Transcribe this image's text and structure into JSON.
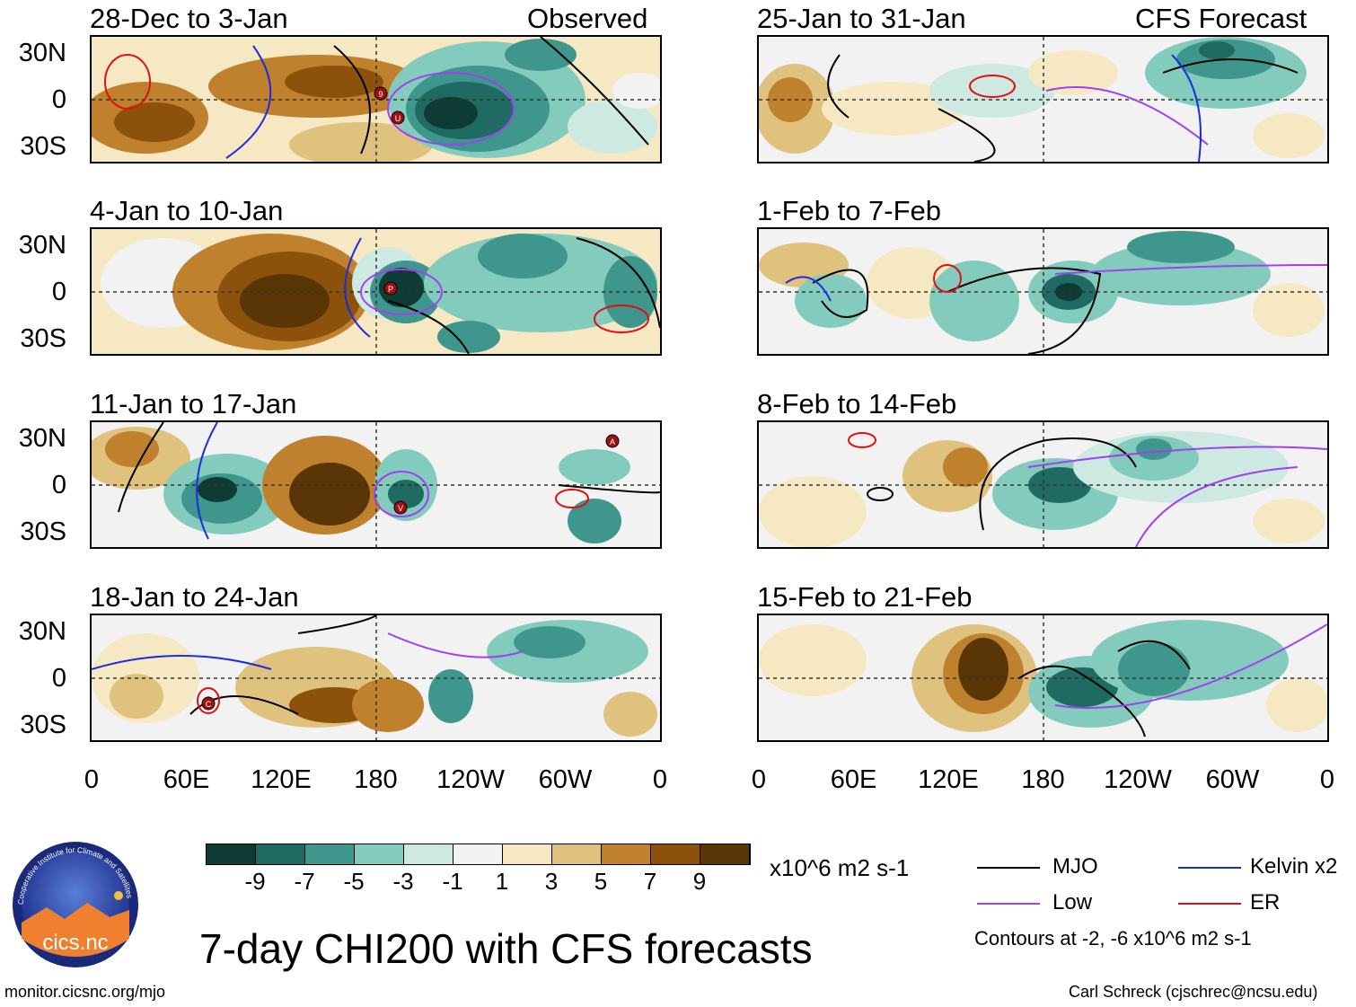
{
  "figure": {
    "title": "7-day CHI200 with CFS forecasts",
    "url": "monitor.cicsnc.org/mjo",
    "credit": "Carl Schreck (cjschrec@ncsu.edu)",
    "logo_text": "cics.nc",
    "logo_ring_text": "Cooperative Institute for Climate and Satellites"
  },
  "columns": {
    "left_label": "Observed",
    "right_label": "CFS Forecast"
  },
  "panels_left": [
    {
      "title": "28-Dec to 3-Jan"
    },
    {
      "title": "4-Jan to 10-Jan"
    },
    {
      "title": "11-Jan to 17-Jan"
    },
    {
      "title": "18-Jan to 24-Jan"
    }
  ],
  "panels_right": [
    {
      "title": "25-Jan to 31-Jan"
    },
    {
      "title": "1-Feb to 7-Feb"
    },
    {
      "title": "8-Feb to 14-Feb"
    },
    {
      "title": "15-Feb to 21-Feb"
    }
  ],
  "axes": {
    "y_ticks": [
      "30N",
      "0",
      "30S"
    ],
    "x_ticks": [
      "0",
      "60E",
      "120E",
      "180",
      "120W",
      "60W",
      "0"
    ]
  },
  "colorbar": {
    "labels": [
      "-9",
      "-7",
      "-5",
      "-3",
      "-1",
      "1",
      "3",
      "5",
      "7",
      "9"
    ],
    "units": "x10^6 m2 s-1",
    "colors": [
      "#0e3b33",
      "#1f6b63",
      "#3e968c",
      "#82cbbd",
      "#cde9e2",
      "#f2f2f2",
      "#f6e8c3",
      "#dfc27d",
      "#bf812d",
      "#8c510a",
      "#5a3505"
    ]
  },
  "legend": {
    "items": [
      {
        "label": "MJO",
        "color": "#000000"
      },
      {
        "label": "Kelvin x2",
        "color": "#1f2be0"
      },
      {
        "label": "Low",
        "color": "#a040f0"
      },
      {
        "label": "ER",
        "color": "#e01010"
      }
    ],
    "contours_note": "Contours at -2, -6 x10^6 m2 s-1"
  },
  "storm_markers": [
    "9",
    "U",
    "P",
    "V",
    "A",
    "C"
  ]
}
